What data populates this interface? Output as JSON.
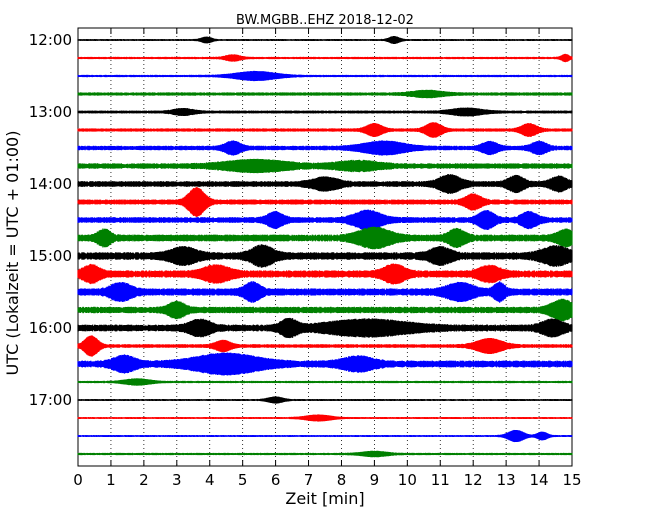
{
  "chart_data": {
    "type": "line",
    "chart_kind": "helicorder",
    "title": "BW.MGBB..EHZ 2018-12-02",
    "xlabel": "Zeit  [min]",
    "ylabel": "UTC (Lokalzeit = UTC + 01:00)",
    "xlim": [
      0,
      15
    ],
    "x_ticks": [
      "0",
      "1",
      "2",
      "3",
      "4",
      "5",
      "6",
      "7",
      "8",
      "9",
      "10",
      "11",
      "12",
      "13",
      "14",
      "15"
    ],
    "y_tick_labels": [
      "12:00",
      "13:00",
      "14:00",
      "15:00",
      "16:00",
      "17:00"
    ],
    "grid": {
      "x": "dotted vertical lines at each minute",
      "y": "none"
    },
    "trace_colors": [
      "#000000",
      "#ff0000",
      "#0000ff",
      "#008000"
    ],
    "traces": [
      {
        "start": "12:00",
        "color": "#000000",
        "base": 0.1,
        "bursts": [
          [
            3.9,
            0.2,
            0.3
          ],
          [
            9.6,
            0.2,
            0.35
          ]
        ]
      },
      {
        "start": "12:15",
        "color": "#ff0000",
        "base": 0.12,
        "bursts": [
          [
            4.7,
            0.3,
            0.3
          ],
          [
            14.8,
            0.15,
            0.35
          ]
        ]
      },
      {
        "start": "12:30",
        "color": "#0000ff",
        "base": 0.12,
        "bursts": [
          [
            5.4,
            0.8,
            0.45
          ]
        ]
      },
      {
        "start": "12:45",
        "color": "#008000",
        "base": 0.18,
        "bursts": [
          [
            10.6,
            0.6,
            0.3
          ]
        ]
      },
      {
        "start": "13:00",
        "color": "#000000",
        "base": 0.16,
        "bursts": [
          [
            3.2,
            0.4,
            0.3
          ],
          [
            11.8,
            0.6,
            0.35
          ]
        ]
      },
      {
        "start": "13:15",
        "color": "#ff0000",
        "base": 0.18,
        "bursts": [
          [
            9.0,
            0.3,
            0.6
          ],
          [
            10.8,
            0.3,
            0.7
          ],
          [
            13.7,
            0.3,
            0.6
          ]
        ]
      },
      {
        "start": "13:30",
        "color": "#0000ff",
        "base": 0.25,
        "bursts": [
          [
            4.7,
            0.3,
            0.6
          ],
          [
            9.3,
            0.8,
            0.6
          ],
          [
            12.5,
            0.3,
            0.55
          ],
          [
            14.0,
            0.3,
            0.55
          ]
        ]
      },
      {
        "start": "13:45",
        "color": "#008000",
        "base": 0.3,
        "bursts": [
          [
            5.4,
            1.2,
            0.5
          ],
          [
            8.5,
            0.8,
            0.4
          ]
        ]
      },
      {
        "start": "14:00",
        "color": "#000000",
        "base": 0.32,
        "bursts": [
          [
            7.5,
            0.5,
            0.55
          ],
          [
            11.3,
            0.4,
            0.8
          ],
          [
            13.3,
            0.3,
            0.7
          ],
          [
            14.6,
            0.3,
            0.65
          ]
        ]
      },
      {
        "start": "14:15",
        "color": "#ff0000",
        "base": 0.28,
        "bursts": [
          [
            3.6,
            0.3,
            1.4
          ],
          [
            12.0,
            0.3,
            0.7
          ]
        ]
      },
      {
        "start": "14:30",
        "color": "#0000ff",
        "base": 0.32,
        "bursts": [
          [
            6.0,
            0.3,
            0.7
          ],
          [
            8.8,
            0.5,
            0.85
          ],
          [
            12.4,
            0.3,
            0.8
          ],
          [
            13.7,
            0.3,
            0.7
          ]
        ]
      },
      {
        "start": "14:45",
        "color": "#008000",
        "base": 0.38,
        "bursts": [
          [
            0.8,
            0.25,
            0.7
          ],
          [
            9.0,
            0.6,
            0.9
          ],
          [
            11.5,
            0.3,
            0.75
          ],
          [
            14.8,
            0.3,
            0.7
          ]
        ]
      },
      {
        "start": "15:00",
        "color": "#000000",
        "base": 0.42,
        "bursts": [
          [
            3.2,
            0.5,
            0.7
          ],
          [
            5.6,
            0.4,
            0.9
          ],
          [
            11.0,
            0.4,
            0.7
          ],
          [
            14.5,
            0.5,
            0.8
          ]
        ]
      },
      {
        "start": "15:15",
        "color": "#ff0000",
        "base": 0.4,
        "bursts": [
          [
            0.4,
            0.3,
            0.75
          ],
          [
            4.2,
            0.5,
            0.7
          ],
          [
            9.6,
            0.4,
            0.8
          ],
          [
            12.5,
            0.4,
            0.65
          ]
        ]
      },
      {
        "start": "15:30",
        "color": "#0000ff",
        "base": 0.4,
        "bursts": [
          [
            1.3,
            0.4,
            0.75
          ],
          [
            5.3,
            0.3,
            0.8
          ],
          [
            11.6,
            0.5,
            0.75
          ],
          [
            12.8,
            0.2,
            0.8
          ]
        ]
      },
      {
        "start": "15:45",
        "color": "#008000",
        "base": 0.36,
        "bursts": [
          [
            3.0,
            0.3,
            0.7
          ],
          [
            14.7,
            0.4,
            0.9
          ]
        ]
      },
      {
        "start": "16:00",
        "color": "#000000",
        "base": 0.38,
        "bursts": [
          [
            3.7,
            0.4,
            0.7
          ],
          [
            6.4,
            0.3,
            0.75
          ],
          [
            8.8,
            1.5,
            0.7
          ],
          [
            14.4,
            0.4,
            0.7
          ]
        ]
      },
      {
        "start": "16:15",
        "color": "#ff0000",
        "base": 0.2,
        "bursts": [
          [
            0.4,
            0.25,
            1.0
          ],
          [
            4.4,
            0.3,
            0.5
          ],
          [
            12.5,
            0.5,
            0.7
          ]
        ]
      },
      {
        "start": "16:30",
        "color": "#0000ff",
        "base": 0.38,
        "bursts": [
          [
            1.4,
            0.4,
            0.7
          ],
          [
            4.5,
            1.2,
            0.9
          ],
          [
            8.5,
            0.6,
            0.6
          ]
        ]
      },
      {
        "start": "16:45",
        "color": "#008000",
        "base": 0.12,
        "bursts": [
          [
            1.8,
            0.5,
            0.3
          ]
        ]
      },
      {
        "start": "17:00",
        "color": "#000000",
        "base": 0.1,
        "bursts": [
          [
            6.0,
            0.3,
            0.3
          ]
        ]
      },
      {
        "start": "17:15",
        "color": "#ff0000",
        "base": 0.1,
        "bursts": [
          [
            7.3,
            0.5,
            0.3
          ]
        ]
      },
      {
        "start": "17:30",
        "color": "#0000ff",
        "base": 0.1,
        "bursts": [
          [
            13.3,
            0.3,
            0.6
          ],
          [
            14.1,
            0.2,
            0.4
          ]
        ]
      },
      {
        "start": "17:45",
        "color": "#008000",
        "base": 0.12,
        "bursts": [
          [
            9.0,
            0.5,
            0.25
          ]
        ]
      }
    ]
  }
}
